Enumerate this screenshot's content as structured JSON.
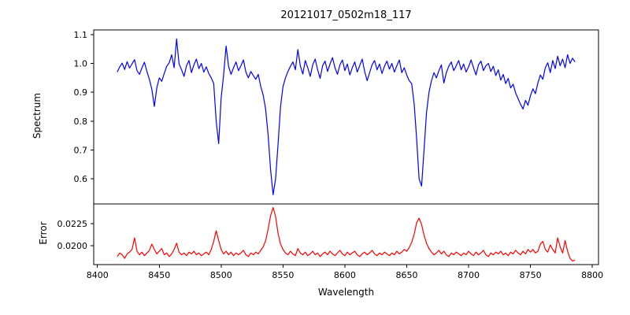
{
  "figure": {
    "background": "#ffffff",
    "axis_color": "#000000"
  },
  "chart_data": {
    "type": "line",
    "title": "20121017_0502m18_117",
    "xlabel": "Wavelength",
    "grid": false,
    "legend": "none",
    "xlim": [
      8397,
      8805
    ],
    "xticks": [
      8400,
      8450,
      8500,
      8550,
      8600,
      8650,
      8700,
      8750,
      8800
    ],
    "xtick_labels": [
      "8400",
      "8450",
      "8500",
      "8550",
      "8600",
      "8650",
      "8700",
      "8750",
      "8800"
    ],
    "x_start": 8416,
    "x_step": 2,
    "n_points": 186,
    "absorption_line_centers": [
      8446,
      8498,
      8542,
      8662,
      8750
    ],
    "subplots": [
      {
        "name": "spectrum",
        "ylabel": "Spectrum",
        "line_color": "#0000ff",
        "ylim": [
          0.513,
          1.116
        ],
        "yticks": [
          0.6,
          0.7,
          0.8,
          0.9,
          1.0,
          1.1
        ],
        "ytick_labels": [
          "0.6",
          "0.7",
          "0.8",
          "0.9",
          "1.0",
          "1.1"
        ],
        "values": [
          0.97,
          0.988,
          1.001,
          0.979,
          1.006,
          0.984,
          0.999,
          1.013,
          0.975,
          0.962,
          0.985,
          1.004,
          0.972,
          0.945,
          0.91,
          0.851,
          0.915,
          0.95,
          0.938,
          0.965,
          0.99,
          1.002,
          1.03,
          0.985,
          1.085,
          0.998,
          0.978,
          0.955,
          0.992,
          1.01,
          0.968,
          0.995,
          1.015,
          0.982,
          1.0,
          0.97,
          0.988,
          0.965,
          0.95,
          0.93,
          0.8,
          0.722,
          0.88,
          0.96,
          1.06,
          0.99,
          0.962,
          0.985,
          1.005,
          0.975,
          0.992,
          1.012,
          0.97,
          0.95,
          0.972,
          0.958,
          0.945,
          0.962,
          0.92,
          0.89,
          0.84,
          0.75,
          0.63,
          0.545,
          0.6,
          0.72,
          0.85,
          0.92,
          0.95,
          0.972,
          0.99,
          1.005,
          0.978,
          1.048,
          0.992,
          0.963,
          1.01,
          0.985,
          0.955,
          0.995,
          1.015,
          0.978,
          0.948,
          0.992,
          1.008,
          0.972,
          0.998,
          1.02,
          0.985,
          0.962,
          0.995,
          1.012,
          0.975,
          0.998,
          0.96,
          0.985,
          1.005,
          0.97,
          0.992,
          1.015,
          0.972,
          0.94,
          0.968,
          0.995,
          1.01,
          0.978,
          0.998,
          0.965,
          0.99,
          1.008,
          0.98,
          1.0,
          0.97,
          0.992,
          1.012,
          0.968,
          0.985,
          0.96,
          0.94,
          0.93,
          0.86,
          0.74,
          0.6,
          0.575,
          0.7,
          0.83,
          0.9,
          0.94,
          0.968,
          0.95,
          0.975,
          0.995,
          0.932,
          0.968,
          0.99,
          1.005,
          0.975,
          0.992,
          1.01,
          0.978,
          0.998,
          0.97,
          0.988,
          1.012,
          0.985,
          0.96,
          0.995,
          1.008,
          0.975,
          0.992,
          1.0,
          0.972,
          0.99,
          0.958,
          0.978,
          0.942,
          0.962,
          0.93,
          0.948,
          0.915,
          0.928,
          0.898,
          0.878,
          0.858,
          0.842,
          0.872,
          0.855,
          0.888,
          0.912,
          0.895,
          0.932,
          0.96,
          0.945,
          0.985,
          1.002,
          0.968,
          1.01,
          0.982,
          1.025,
          0.992,
          1.015,
          0.985,
          1.03,
          1.0,
          1.018,
          1.005
        ]
      },
      {
        "name": "error",
        "ylabel": "Error",
        "line_color": "#ff0000",
        "ylim": [
          0.0179,
          0.0247
        ],
        "yticks": [
          0.02,
          0.0225
        ],
        "ytick_labels": [
          "0.0200",
          "0.0225"
        ],
        "values": [
          0.0188,
          0.0192,
          0.019,
          0.0186,
          0.0191,
          0.0193,
          0.0196,
          0.0209,
          0.0194,
          0.019,
          0.0193,
          0.0189,
          0.0192,
          0.0195,
          0.0202,
          0.0196,
          0.0191,
          0.0194,
          0.0197,
          0.019,
          0.0192,
          0.0188,
          0.0191,
          0.0196,
          0.0203,
          0.0193,
          0.019,
          0.0192,
          0.0189,
          0.0193,
          0.0191,
          0.0194,
          0.019,
          0.0192,
          0.0189,
          0.0191,
          0.0193,
          0.019,
          0.0196,
          0.0205,
          0.0217,
          0.0206,
          0.0196,
          0.0191,
          0.0194,
          0.019,
          0.0193,
          0.0189,
          0.0192,
          0.019,
          0.0192,
          0.0195,
          0.019,
          0.0188,
          0.0192,
          0.019,
          0.0193,
          0.0191,
          0.0195,
          0.0199,
          0.0206,
          0.0219,
          0.0234,
          0.0243,
          0.0233,
          0.0214,
          0.0202,
          0.0196,
          0.0192,
          0.019,
          0.0194,
          0.0191,
          0.0189,
          0.0197,
          0.0192,
          0.019,
          0.0193,
          0.0189,
          0.0191,
          0.0194,
          0.019,
          0.0192,
          0.0188,
          0.0191,
          0.0193,
          0.019,
          0.0194,
          0.0191,
          0.0189,
          0.0192,
          0.0195,
          0.0191,
          0.0189,
          0.0193,
          0.019,
          0.0192,
          0.0194,
          0.019,
          0.0188,
          0.0191,
          0.0193,
          0.019,
          0.0192,
          0.0195,
          0.0191,
          0.0189,
          0.0192,
          0.019,
          0.0193,
          0.0191,
          0.0189,
          0.0192,
          0.019,
          0.0194,
          0.0191,
          0.0193,
          0.0196,
          0.0194,
          0.0198,
          0.0204,
          0.0213,
          0.0226,
          0.0231,
          0.0224,
          0.0212,
          0.0203,
          0.0197,
          0.0193,
          0.019,
          0.0192,
          0.0195,
          0.0191,
          0.0194,
          0.019,
          0.0188,
          0.0192,
          0.019,
          0.0193,
          0.0191,
          0.0189,
          0.0192,
          0.019,
          0.0194,
          0.0191,
          0.0189,
          0.0193,
          0.019,
          0.0192,
          0.0195,
          0.019,
          0.0188,
          0.0192,
          0.019,
          0.0193,
          0.0191,
          0.0194,
          0.019,
          0.0192,
          0.0189,
          0.0193,
          0.0191,
          0.0195,
          0.0192,
          0.019,
          0.0194,
          0.0191,
          0.0196,
          0.0193,
          0.0196,
          0.0192,
          0.0194,
          0.0202,
          0.0205,
          0.0196,
          0.0193,
          0.0201,
          0.0196,
          0.0192,
          0.0209,
          0.0199,
          0.0192,
          0.0206,
          0.0194,
          0.0186,
          0.0183,
          0.0184
        ]
      }
    ]
  }
}
